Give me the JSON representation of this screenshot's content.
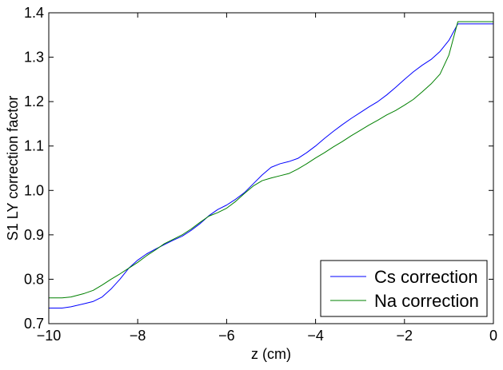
{
  "chart_data": {
    "type": "line",
    "title": "",
    "xlabel": "z (cm)",
    "ylabel": "S1 LY correction factor",
    "xlim": [
      -10,
      0
    ],
    "ylim": [
      0.7,
      1.4
    ],
    "xticks": [
      -10,
      -8,
      -6,
      -4,
      -2,
      0
    ],
    "xtick_labels": [
      "−10",
      "−8",
      "−6",
      "−4",
      "−2",
      "0"
    ],
    "yticks": [
      0.7,
      0.8,
      0.9,
      1.0,
      1.1,
      1.2,
      1.3,
      1.4
    ],
    "ytick_labels": [
      "0.7",
      "0.8",
      "0.9",
      "1.0",
      "1.1",
      "1.2",
      "1.3",
      "1.4"
    ],
    "grid": false,
    "legend_position": "bottom-right",
    "series": [
      {
        "name": "Cs correction",
        "color": "#0000ff",
        "x": [
          -10.0,
          -9.7,
          -9.5,
          -9.2,
          -9.0,
          -8.8,
          -8.6,
          -8.4,
          -8.2,
          -8.0,
          -7.8,
          -7.6,
          -7.4,
          -7.2,
          -7.0,
          -6.8,
          -6.6,
          -6.4,
          -6.2,
          -6.0,
          -5.8,
          -5.6,
          -5.4,
          -5.2,
          -5.0,
          -4.8,
          -4.6,
          -4.4,
          -4.2,
          -4.0,
          -3.8,
          -3.6,
          -3.4,
          -3.2,
          -3.0,
          -2.8,
          -2.6,
          -2.4,
          -2.2,
          -2.0,
          -1.8,
          -1.6,
          -1.4,
          -1.2,
          -1.0,
          -0.8,
          0.0
        ],
        "y": [
          0.735,
          0.735,
          0.738,
          0.745,
          0.75,
          0.76,
          0.778,
          0.8,
          0.825,
          0.843,
          0.857,
          0.868,
          0.878,
          0.888,
          0.897,
          0.91,
          0.925,
          0.943,
          0.957,
          0.967,
          0.98,
          0.995,
          1.015,
          1.035,
          1.052,
          1.06,
          1.065,
          1.072,
          1.085,
          1.1,
          1.117,
          1.133,
          1.148,
          1.162,
          1.175,
          1.188,
          1.2,
          1.215,
          1.232,
          1.25,
          1.267,
          1.282,
          1.295,
          1.313,
          1.338,
          1.375,
          1.375
        ]
      },
      {
        "name": "Na correction",
        "color": "#008000",
        "x": [
          -10.0,
          -9.7,
          -9.5,
          -9.2,
          -9.0,
          -8.8,
          -8.6,
          -8.4,
          -8.2,
          -8.0,
          -7.8,
          -7.6,
          -7.4,
          -7.2,
          -7.0,
          -6.8,
          -6.6,
          -6.4,
          -6.2,
          -6.0,
          -5.8,
          -5.6,
          -5.4,
          -5.2,
          -5.0,
          -4.8,
          -4.6,
          -4.4,
          -4.2,
          -4.0,
          -3.8,
          -3.6,
          -3.4,
          -3.2,
          -3.0,
          -2.8,
          -2.6,
          -2.4,
          -2.2,
          -2.0,
          -1.8,
          -1.6,
          -1.4,
          -1.2,
          -1.0,
          -0.8,
          0.0
        ],
        "y": [
          0.758,
          0.758,
          0.76,
          0.768,
          0.775,
          0.787,
          0.8,
          0.812,
          0.825,
          0.838,
          0.853,
          0.866,
          0.88,
          0.89,
          0.9,
          0.913,
          0.928,
          0.942,
          0.95,
          0.96,
          0.975,
          0.993,
          1.01,
          1.022,
          1.028,
          1.033,
          1.038,
          1.048,
          1.06,
          1.073,
          1.085,
          1.098,
          1.11,
          1.123,
          1.135,
          1.147,
          1.158,
          1.17,
          1.18,
          1.192,
          1.205,
          1.222,
          1.24,
          1.262,
          1.305,
          1.38,
          1.38
        ]
      }
    ]
  }
}
